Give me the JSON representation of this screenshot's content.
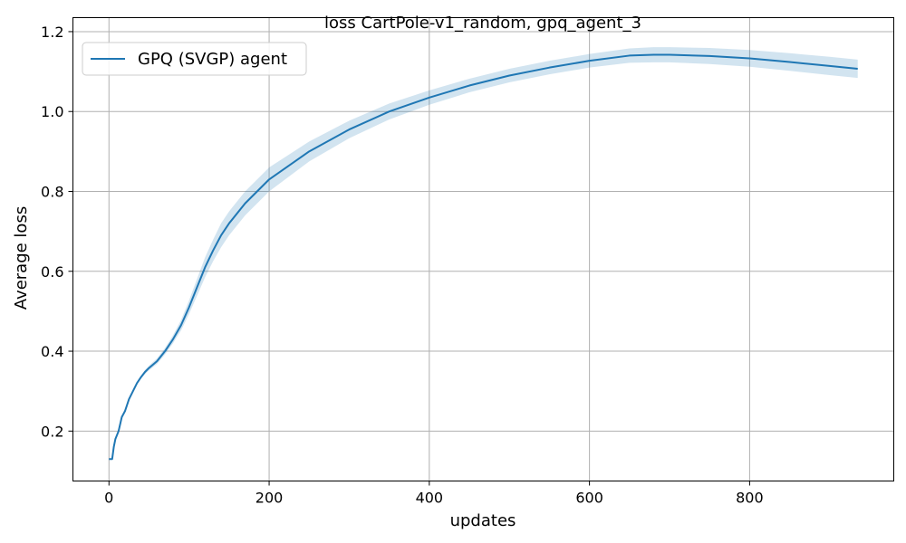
{
  "chart_data": {
    "type": "line",
    "title": "loss CartPole-v1_random, gpq_agent_3",
    "xlabel": "updates",
    "ylabel": "Average loss",
    "xlim": [
      -45,
      980
    ],
    "ylim": [
      0.075,
      1.235
    ],
    "xticks": [
      0,
      200,
      400,
      600,
      800
    ],
    "xtick_labels": [
      "0",
      "200",
      "400",
      "600",
      "800"
    ],
    "yticks": [
      0.2,
      0.4,
      0.6,
      0.8,
      1.0,
      1.2
    ],
    "ytick_labels": [
      "0.2",
      "0.4",
      "0.6",
      "0.8",
      "1.0",
      "1.2"
    ],
    "grid": true,
    "legend_position": "top-left",
    "series": [
      {
        "name": "GPQ (SVGP) agent",
        "color": "#1f77b4",
        "band_color": "#1f77b4",
        "x": [
          0,
          4,
          6,
          8,
          12,
          16,
          20,
          25,
          30,
          35,
          40,
          45,
          50,
          60,
          70,
          80,
          90,
          100,
          110,
          120,
          130,
          140,
          150,
          170,
          200,
          250,
          300,
          350,
          400,
          450,
          500,
          550,
          600,
          650,
          680,
          700,
          750,
          800,
          850,
          900,
          935
        ],
        "y": [
          0.13,
          0.13,
          0.16,
          0.18,
          0.2,
          0.235,
          0.25,
          0.28,
          0.3,
          0.32,
          0.335,
          0.348,
          0.358,
          0.375,
          0.4,
          0.43,
          0.465,
          0.51,
          0.56,
          0.61,
          0.652,
          0.69,
          0.72,
          0.77,
          0.83,
          0.9,
          0.955,
          1.0,
          1.035,
          1.065,
          1.09,
          1.11,
          1.127,
          1.14,
          1.142,
          1.142,
          1.139,
          1.133,
          1.124,
          1.114,
          1.107
        ],
        "lower": [
          0.13,
          0.13,
          0.16,
          0.18,
          0.2,
          0.235,
          0.25,
          0.278,
          0.298,
          0.317,
          0.331,
          0.343,
          0.352,
          0.368,
          0.392,
          0.42,
          0.452,
          0.493,
          0.539,
          0.585,
          0.625,
          0.66,
          0.69,
          0.74,
          0.8,
          0.875,
          0.933,
          0.98,
          1.017,
          1.048,
          1.073,
          1.093,
          1.11,
          1.122,
          1.123,
          1.123,
          1.119,
          1.112,
          1.102,
          1.091,
          1.084
        ],
        "upper": [
          0.13,
          0.13,
          0.16,
          0.18,
          0.2,
          0.235,
          0.25,
          0.282,
          0.302,
          0.323,
          0.339,
          0.353,
          0.364,
          0.382,
          0.408,
          0.44,
          0.478,
          0.527,
          0.581,
          0.635,
          0.679,
          0.72,
          0.75,
          0.8,
          0.86,
          0.925,
          0.977,
          1.02,
          1.053,
          1.082,
          1.107,
          1.127,
          1.144,
          1.158,
          1.161,
          1.161,
          1.159,
          1.154,
          1.146,
          1.137,
          1.13
        ]
      }
    ]
  }
}
